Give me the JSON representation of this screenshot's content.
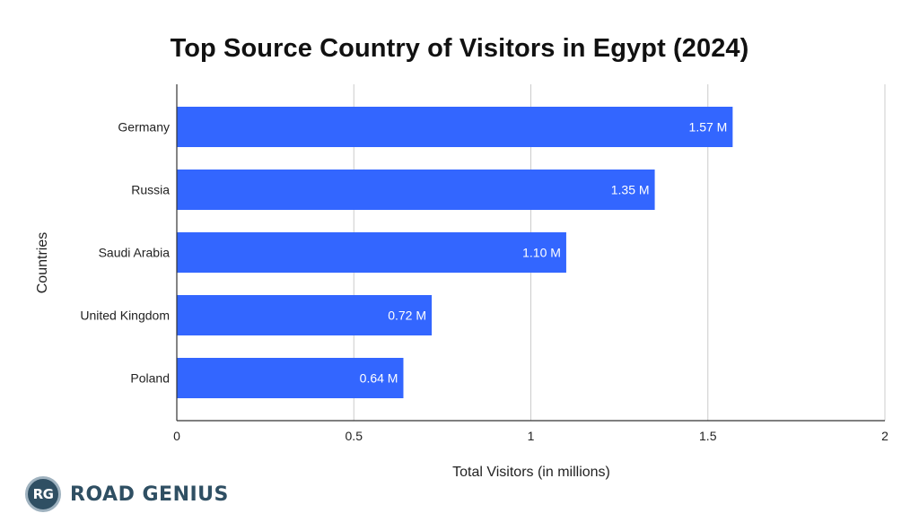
{
  "chart_data": {
    "type": "bar",
    "orientation": "horizontal",
    "title": "Top Source Country of Visitors in Egypt (2024)",
    "xlabel": "Total Visitors (in millions)",
    "ylabel": "Countries",
    "categories": [
      "Germany",
      "Russia",
      "Saudi Arabia",
      "United Kingdom",
      "Poland"
    ],
    "values": [
      1.57,
      1.35,
      1.1,
      0.72,
      0.64
    ],
    "data_labels": [
      "1.57 M",
      "1.35 M",
      "1.10 M",
      "0.72 M",
      "0.64 M"
    ],
    "xlim": [
      0,
      2
    ],
    "x_ticks": [
      0,
      0.5,
      1,
      1.5,
      2
    ],
    "x_tick_labels": [
      "0",
      "0.5",
      "1",
      "1.5",
      "2"
    ],
    "grid": true,
    "legend": "none",
    "bar_color": "#3366ff"
  },
  "branding": {
    "logo_initials": "RG",
    "logo_text": "ROAD GENIUS"
  }
}
